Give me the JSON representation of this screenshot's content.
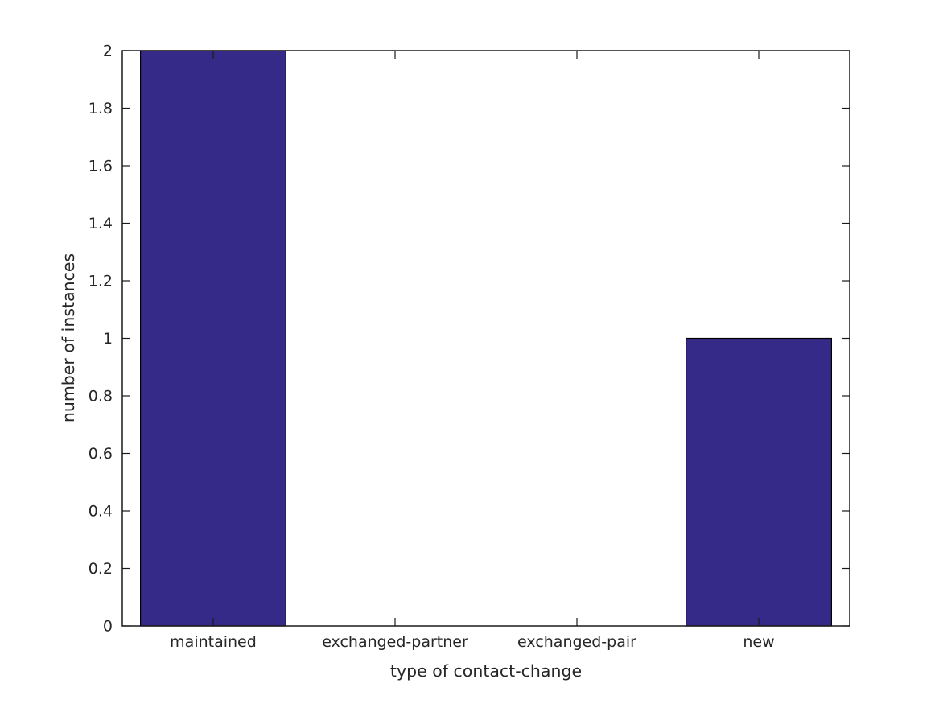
{
  "chart_data": {
    "type": "bar",
    "title": "",
    "categories": [
      "maintained",
      "exchanged-partner",
      "exchanged-pair",
      "new"
    ],
    "values": [
      2,
      0,
      0,
      1
    ],
    "xlabel": "type of contact-change",
    "ylabel": "number of instances",
    "ylim": [
      0,
      2
    ],
    "yticks": [
      0,
      0.2,
      0.4,
      0.6,
      0.8,
      1,
      1.2,
      1.4,
      1.6,
      1.8,
      2
    ],
    "ytick_labels": [
      "0",
      "0.2",
      "0.4",
      "0.6",
      "0.8",
      "1",
      "1.2",
      "1.4",
      "1.6",
      "1.8",
      "2"
    ],
    "bar_width_fraction": 0.8,
    "grid": false,
    "legend": null,
    "layout_hints": {
      "box": true,
      "ticks_inward_all_sides": true
    },
    "colors": {
      "bar_fill": "#352A87",
      "bar_edge": "#000000",
      "axis": "#1a1a1a",
      "text": "#262626",
      "background": "#ffffff"
    }
  }
}
